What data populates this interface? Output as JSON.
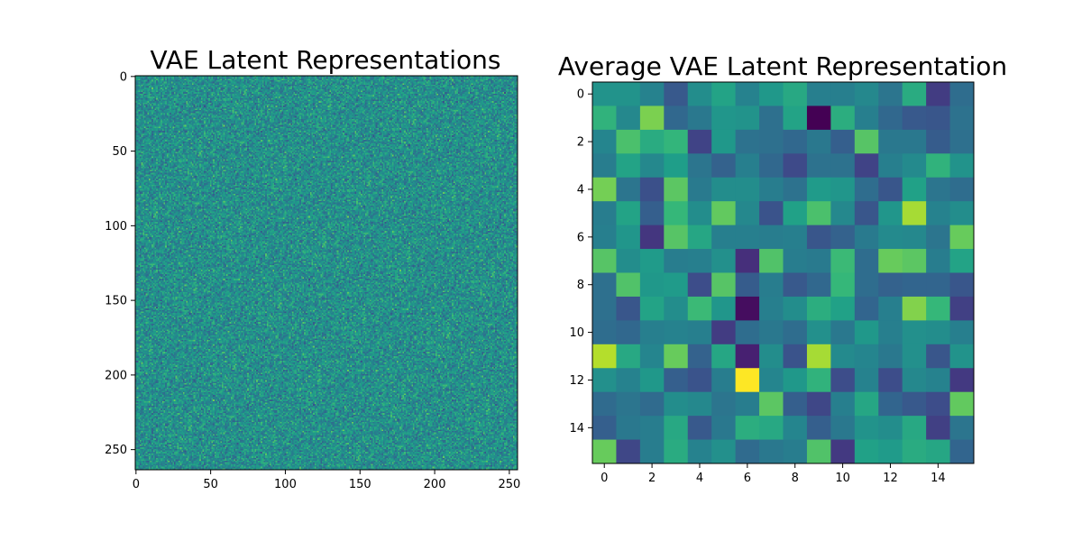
{
  "chart_data": [
    {
      "type": "heatmap",
      "title": "VAE Latent Representations",
      "xlabel": "",
      "ylabel": "",
      "xlim": [
        -0.5,
        255.5
      ],
      "ylim": [
        263.5,
        -0.5
      ],
      "rows": 264,
      "cols": 256,
      "colormap": "viridis",
      "value_range": [
        0,
        1
      ],
      "distribution": "random noise centered near 0.45 (teal)",
      "xticks": [
        0,
        50,
        100,
        150,
        200,
        250
      ],
      "yticks": [
        0,
        50,
        100,
        150,
        200,
        250
      ],
      "grid": false
    },
    {
      "type": "heatmap",
      "title": "Average VAE Latent Representation",
      "xlabel": "",
      "ylabel": "",
      "xlim": [
        -0.5,
        15.5
      ],
      "ylim": [
        15.5,
        -0.5
      ],
      "rows": 16,
      "cols": 16,
      "colormap": "viridis",
      "value_range": [
        0,
        1
      ],
      "values": [
        [
          0.46,
          0.46,
          0.4,
          0.25,
          0.44,
          0.52,
          0.4,
          0.48,
          0.54,
          0.39,
          0.39,
          0.42,
          0.35,
          0.55,
          0.16,
          0.32
        ],
        [
          0.58,
          0.42,
          0.72,
          0.3,
          0.36,
          0.47,
          0.46,
          0.33,
          0.52,
          0.0,
          0.56,
          0.39,
          0.3,
          0.25,
          0.24,
          0.34
        ],
        [
          0.41,
          0.64,
          0.55,
          0.59,
          0.18,
          0.48,
          0.34,
          0.33,
          0.3,
          0.36,
          0.27,
          0.66,
          0.36,
          0.36,
          0.26,
          0.33
        ],
        [
          0.38,
          0.52,
          0.42,
          0.5,
          0.35,
          0.28,
          0.39,
          0.3,
          0.2,
          0.34,
          0.34,
          0.18,
          0.39,
          0.43,
          0.58,
          0.46
        ],
        [
          0.71,
          0.35,
          0.22,
          0.67,
          0.37,
          0.44,
          0.44,
          0.38,
          0.34,
          0.49,
          0.47,
          0.32,
          0.24,
          0.51,
          0.35,
          0.32
        ],
        [
          0.38,
          0.52,
          0.27,
          0.6,
          0.44,
          0.68,
          0.42,
          0.23,
          0.51,
          0.64,
          0.42,
          0.24,
          0.47,
          0.78,
          0.4,
          0.44
        ],
        [
          0.39,
          0.47,
          0.14,
          0.66,
          0.53,
          0.39,
          0.39,
          0.38,
          0.39,
          0.24,
          0.28,
          0.37,
          0.43,
          0.42,
          0.35,
          0.69
        ],
        [
          0.66,
          0.44,
          0.49,
          0.38,
          0.39,
          0.45,
          0.12,
          0.65,
          0.38,
          0.37,
          0.61,
          0.32,
          0.69,
          0.67,
          0.38,
          0.52
        ],
        [
          0.33,
          0.65,
          0.48,
          0.49,
          0.21,
          0.66,
          0.26,
          0.38,
          0.25,
          0.3,
          0.6,
          0.32,
          0.28,
          0.29,
          0.29,
          0.24
        ],
        [
          0.33,
          0.24,
          0.52,
          0.44,
          0.61,
          0.47,
          0.03,
          0.39,
          0.44,
          0.56,
          0.51,
          0.29,
          0.39,
          0.73,
          0.6,
          0.17
        ],
        [
          0.32,
          0.3,
          0.39,
          0.4,
          0.39,
          0.16,
          0.32,
          0.36,
          0.32,
          0.45,
          0.36,
          0.48,
          0.39,
          0.45,
          0.44,
          0.39
        ],
        [
          0.8,
          0.54,
          0.41,
          0.69,
          0.28,
          0.53,
          0.08,
          0.44,
          0.23,
          0.78,
          0.43,
          0.41,
          0.36,
          0.45,
          0.24,
          0.46
        ],
        [
          0.45,
          0.4,
          0.48,
          0.27,
          0.23,
          0.38,
          1.0,
          0.41,
          0.48,
          0.58,
          0.21,
          0.4,
          0.21,
          0.42,
          0.4,
          0.15
        ],
        [
          0.31,
          0.35,
          0.31,
          0.44,
          0.42,
          0.35,
          0.38,
          0.67,
          0.27,
          0.19,
          0.39,
          0.53,
          0.29,
          0.25,
          0.21,
          0.68
        ],
        [
          0.27,
          0.36,
          0.38,
          0.54,
          0.25,
          0.36,
          0.56,
          0.54,
          0.41,
          0.27,
          0.36,
          0.46,
          0.44,
          0.54,
          0.17,
          0.35
        ],
        [
          0.69,
          0.19,
          0.38,
          0.55,
          0.4,
          0.45,
          0.31,
          0.36,
          0.38,
          0.65,
          0.15,
          0.51,
          0.49,
          0.55,
          0.53,
          0.29
        ]
      ],
      "xticks": [
        0,
        2,
        4,
        6,
        8,
        10,
        12,
        14
      ],
      "yticks": [
        0,
        2,
        4,
        6,
        8,
        10,
        12,
        14
      ],
      "grid": false
    }
  ]
}
